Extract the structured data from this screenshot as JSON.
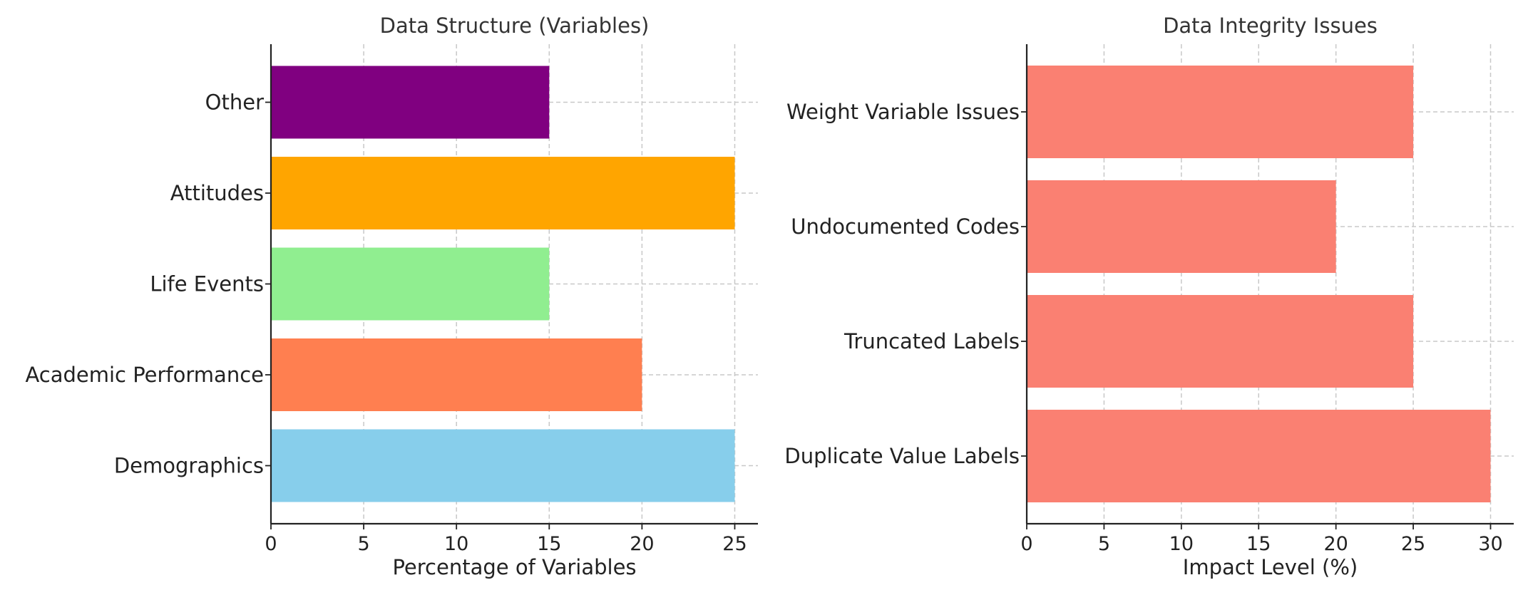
{
  "chart_data": [
    {
      "type": "bar",
      "orientation": "horizontal",
      "title": "Data Structure (Variables)",
      "xlabel": "Percentage of Variables",
      "ylabel": "",
      "categories": [
        "Demographics",
        "Academic Performance",
        "Life Events",
        "Attitudes",
        "Other"
      ],
      "values": [
        25,
        20,
        15,
        25,
        15
      ],
      "colors": [
        "#87CEEB",
        "#FF7F50",
        "#90EE90",
        "#FFA500",
        "#800080"
      ],
      "xlim": [
        0,
        26.25
      ],
      "xticks": [
        0,
        5,
        10,
        15,
        20,
        25
      ],
      "grid": true
    },
    {
      "type": "bar",
      "orientation": "horizontal",
      "title": "Data Integrity Issues",
      "xlabel": "Impact Level (%)",
      "ylabel": "",
      "categories": [
        "Duplicate Value Labels",
        "Truncated Labels",
        "Undocumented Codes",
        "Weight Variable Issues"
      ],
      "values": [
        30,
        25,
        20,
        25
      ],
      "colors": [
        "#FA8072",
        "#FA8072",
        "#FA8072",
        "#FA8072"
      ],
      "xlim": [
        0,
        31.5
      ],
      "xticks": [
        0,
        5,
        10,
        15,
        20,
        25,
        30
      ],
      "grid": true
    }
  ]
}
